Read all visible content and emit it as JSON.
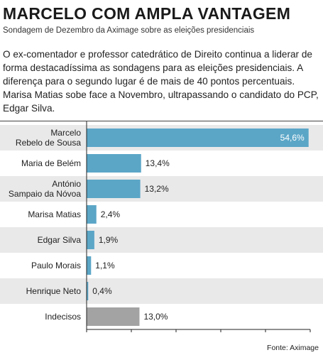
{
  "header": {
    "title": "MARCELO COM AMPLA VANTAGEM",
    "subtitle": "Sondagem de Dezembro da Aximage sobre as eleições presidenciais",
    "lead": "O ex-comentador e professor catedrático de Direito continua a liderar de forma destacadíssima as sondagens para as eleições presidenciais. A diferença para o segundo lugar é de mais de 40 pontos percentuais. Marisa Matias sobe face a Novembro, ultrapassando o candidato do PCP, Edgar Silva."
  },
  "source": "Fonte: Aximage",
  "colors": {
    "bar": "#5ba6c7",
    "bar_undecided": "#a3a3a3",
    "row_alt": "#e9e9ea",
    "axis": "#222222"
  },
  "chart_data": {
    "type": "bar",
    "orientation": "horizontal",
    "categories": [
      "Marcelo\nRebelo de Sousa",
      "Maria de Belém",
      "António\nSampaio da Nóvoa",
      "Marisa Matias",
      "Edgar Silva",
      "Paulo Morais",
      "Henrique Neto",
      "Indecisos"
    ],
    "values": [
      54.6,
      13.4,
      13.2,
      2.4,
      1.9,
      1.1,
      0.4,
      13.0
    ],
    "value_labels": [
      "54,6%",
      "13,4%",
      "13,2%",
      "2,4%",
      "1,9%",
      "1,1%",
      "0,4%",
      "13,0%"
    ],
    "value_label_inside": [
      true,
      false,
      false,
      false,
      false,
      false,
      false,
      false
    ],
    "highlight": [
      false,
      false,
      false,
      false,
      false,
      false,
      false,
      true
    ],
    "xlim": [
      0,
      55
    ],
    "xticks": [
      0,
      11,
      22,
      33,
      44,
      55
    ],
    "xtick_labels": [
      "0",
      "11",
      "22",
      "33",
      "44",
      "55"
    ],
    "grid": false,
    "title": "",
    "xlabel": "",
    "ylabel": ""
  }
}
